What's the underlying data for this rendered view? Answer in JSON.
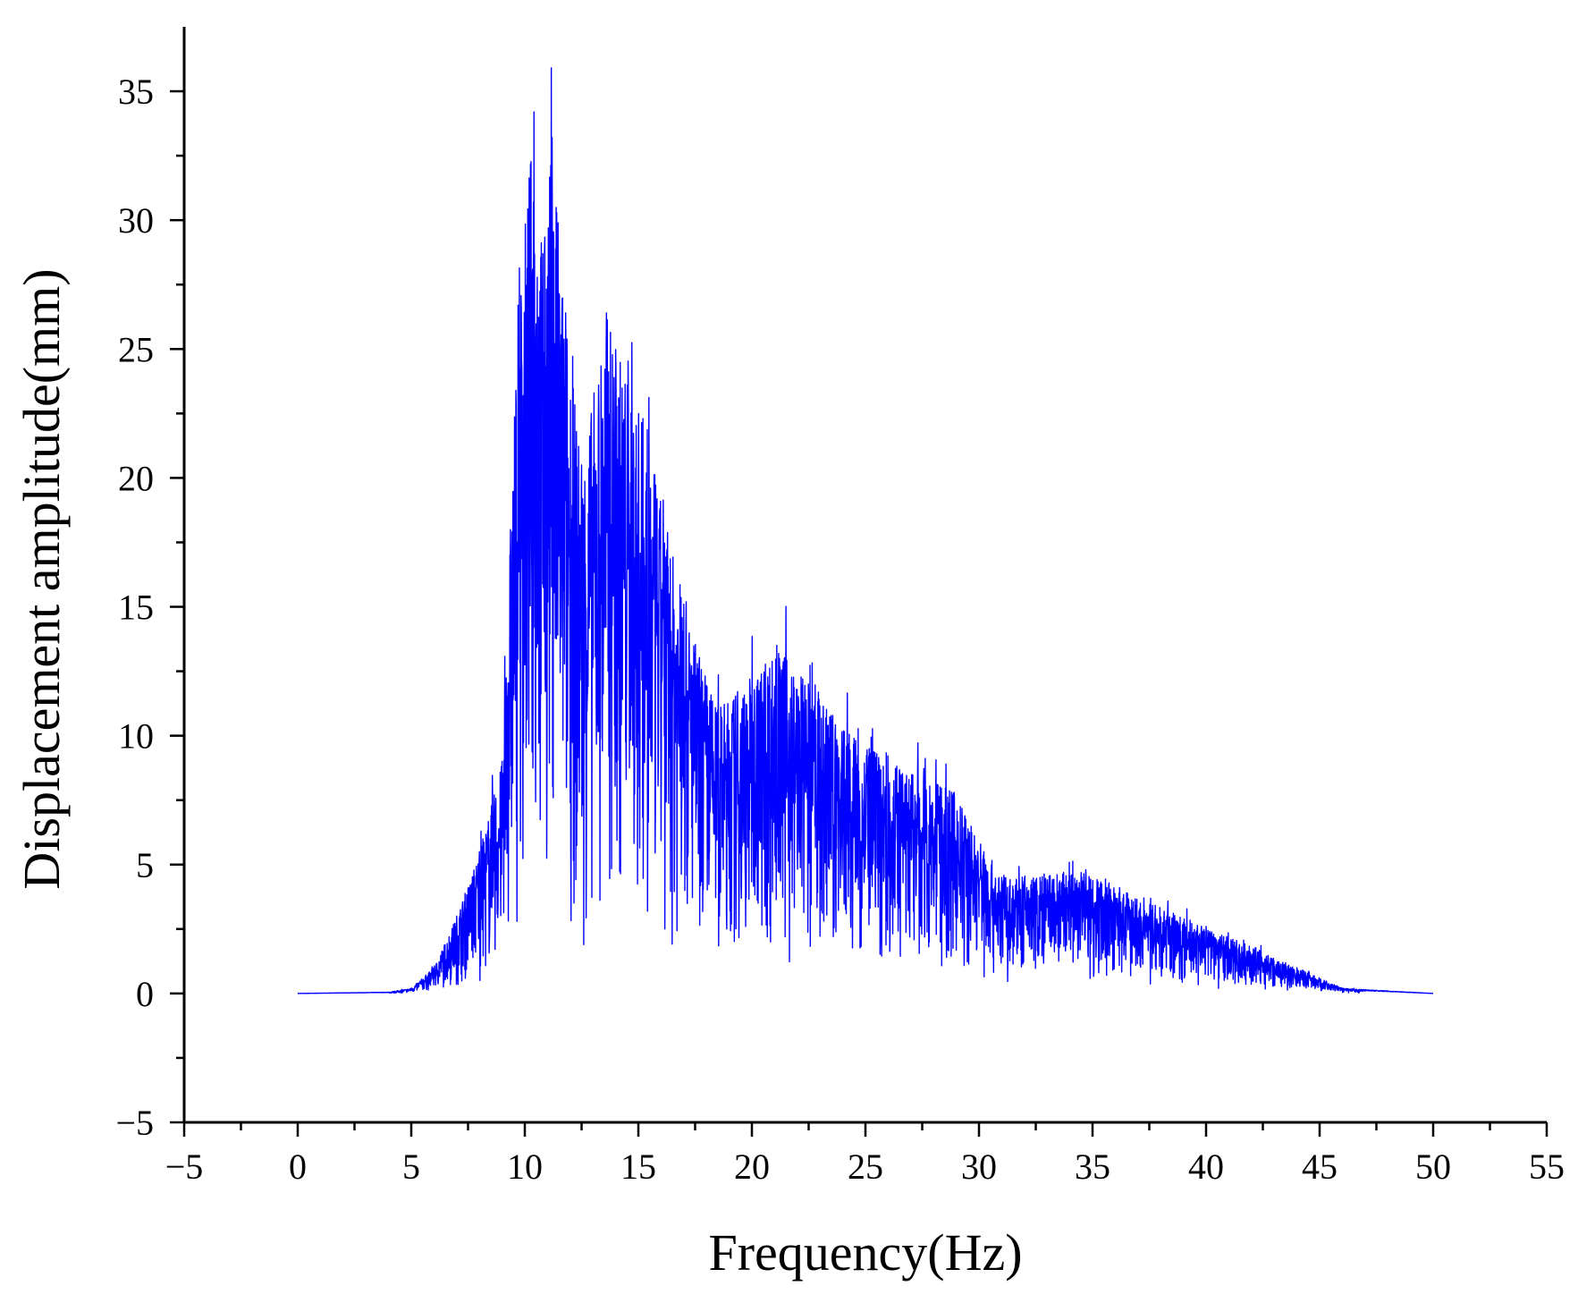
{
  "chart_data": {
    "type": "line",
    "title": "",
    "xlabel": "Frequency(Hz)",
    "ylabel": "Displacement amplitude(mm)",
    "xlim": [
      -5,
      55
    ],
    "ylim": [
      -5,
      37.5
    ],
    "x_ticks": [
      -5,
      0,
      5,
      10,
      15,
      20,
      25,
      30,
      35,
      40,
      45,
      50,
      55
    ],
    "y_ticks": [
      -5,
      0,
      5,
      10,
      15,
      20,
      25,
      30,
      35
    ],
    "x_tick_labels": [
      "−5",
      "0",
      "5",
      "10",
      "15",
      "20",
      "25",
      "30",
      "35",
      "40",
      "45",
      "50",
      "55"
    ],
    "y_tick_labels": [
      "−5",
      "0",
      "5",
      "10",
      "15",
      "20",
      "25",
      "30",
      "35"
    ],
    "grid": false,
    "legend": false,
    "line_color": "#0000ff",
    "series": [
      {
        "x_range": [
          0,
          50
        ],
        "description_points": [
          {
            "x": 0,
            "y": 0
          },
          {
            "x": 4,
            "y": 0.05
          },
          {
            "x": 5,
            "y": 0.2
          },
          {
            "x": 6,
            "y": 1.0
          },
          {
            "x": 7,
            "y": 3.0
          },
          {
            "x": 8,
            "y": 5.5
          },
          {
            "x": 9,
            "y": 9.0
          },
          {
            "x": 9.7,
            "y": 26.7
          },
          {
            "x": 10.4,
            "y": 34.2
          },
          {
            "x": 10.8,
            "y": 28.7
          },
          {
            "x": 11.2,
            "y": 33.2
          },
          {
            "x": 11.8,
            "y": 26.4
          },
          {
            "x": 12.5,
            "y": 20.5
          },
          {
            "x": 13.6,
            "y": 26.4
          },
          {
            "x": 15.2,
            "y": 22.3
          },
          {
            "x": 17,
            "y": 15.1
          },
          {
            "x": 18.5,
            "y": 11.0
          },
          {
            "x": 21.1,
            "y": 13.5
          },
          {
            "x": 24.5,
            "y": 9.9
          },
          {
            "x": 25.5,
            "y": 9.3
          },
          {
            "x": 28.9,
            "y": 7.8
          },
          {
            "x": 31,
            "y": 4.5
          },
          {
            "x": 34.7,
            "y": 4.8
          },
          {
            "x": 36.5,
            "y": 3.9
          },
          {
            "x": 40,
            "y": 2.6
          },
          {
            "x": 44,
            "y": 1.0
          },
          {
            "x": 46,
            "y": 0.2
          },
          {
            "x": 50,
            "y": 0
          }
        ]
      }
    ]
  }
}
